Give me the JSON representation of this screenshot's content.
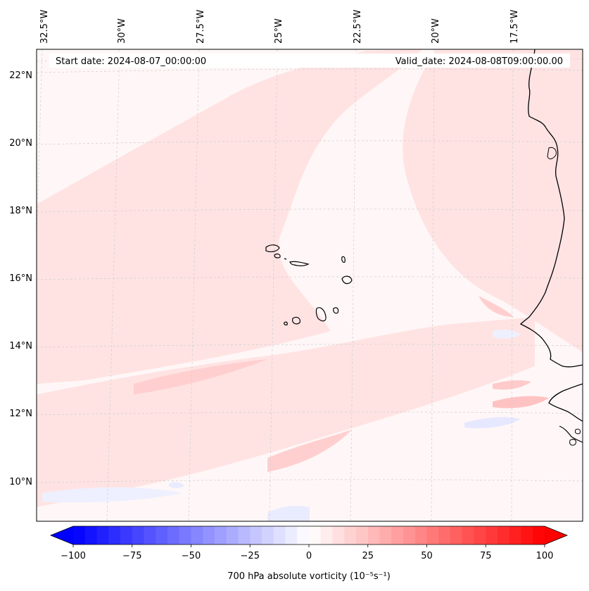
{
  "header": {
    "start_label": "Start date: 2024-08-07_00:00:00",
    "valid_label": "Valid_date: 2024-08-08T09:00:00.00"
  },
  "longitude_ticks": [
    "32.5°W",
    "30°W",
    "27.5°W",
    "25°W",
    "22.5°W",
    "20°W",
    "17.5°W"
  ],
  "latitude_ticks": [
    "22°N",
    "20°N",
    "18°N",
    "16°N",
    "14°N",
    "12°N",
    "10°N"
  ],
  "colorbar": {
    "label": "700 hPa absolute vorticity (10⁻⁵s⁻¹)",
    "tick_labels": [
      "−100",
      "−75",
      "−50",
      "−25",
      "0",
      "25",
      "50",
      "75",
      "100"
    ],
    "min": -100,
    "max": 100,
    "step": 5,
    "extend": "both",
    "colormap": "bwr",
    "low_color": "#0000ff",
    "mid_color": "#ffffff",
    "high_color": "#ff0000"
  },
  "map": {
    "field": "700 hPa absolute vorticity",
    "lon_range": [
      -33,
      -15
    ],
    "lat_range": [
      9,
      23
    ],
    "background_color": "#fff7f7",
    "positive_color": "#ffdede",
    "strong_positive_color": "#ffc2c2",
    "negative_color": "#e4e6ff",
    "coastline_color": "#000000",
    "gridline_color": "#cccccc",
    "features": [
      "West African coastline",
      "Cape Verde islands"
    ]
  }
}
